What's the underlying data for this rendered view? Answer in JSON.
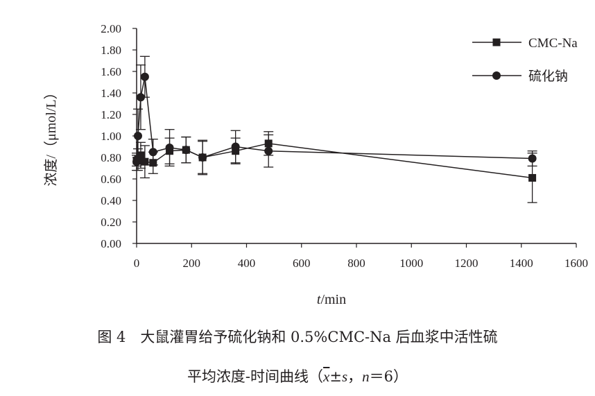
{
  "chart_data": {
    "type": "line",
    "xlabel_italic": "t",
    "xlabel_unit": "/min",
    "ylabel": "浓度/（μmol/L）",
    "xlim": [
      0,
      1600
    ],
    "ylim": [
      0,
      2.0
    ],
    "x_ticks": [
      "0",
      "200",
      "400",
      "600",
      "800",
      "1000",
      "1200",
      "1400",
      "1600"
    ],
    "y_ticks": [
      "0.00",
      "0.20",
      "0.40",
      "0.60",
      "0.80",
      "1.00",
      "1.20",
      "1.40",
      "1.60",
      "1.80",
      "2.00"
    ],
    "legend_position": "top-right",
    "grid": false,
    "series": [
      {
        "name": "CMC-Na",
        "marker": "square",
        "color": "#231f20",
        "x": [
          0,
          5,
          15,
          30,
          60,
          120,
          180,
          240,
          360,
          480,
          1440
        ],
        "y": [
          0.77,
          0.78,
          0.82,
          0.76,
          0.75,
          0.86,
          0.87,
          0.8,
          0.86,
          0.93,
          0.61
        ],
        "err": [
          0.05,
          0.1,
          0.12,
          0.15,
          0.1,
          0.12,
          0.12,
          0.16,
          0.12,
          0.11,
          0.23
        ]
      },
      {
        "name": "硫化钠",
        "marker": "circle",
        "color": "#231f20",
        "x": [
          0,
          5,
          15,
          30,
          60,
          120,
          180,
          240,
          360,
          480,
          1440
        ],
        "y": [
          0.76,
          1.0,
          1.36,
          1.55,
          0.85,
          0.89,
          0.87,
          0.8,
          0.9,
          0.86,
          0.79
        ],
        "err": [
          0.08,
          0.25,
          0.3,
          0.19,
          0.12,
          0.17,
          0.12,
          0.15,
          0.15,
          0.15,
          0.07
        ]
      }
    ]
  },
  "caption": {
    "line1": "图 4　大鼠灌胃给予硫化钠和 0.5%CMC-Na 后血浆中活性硫",
    "line2_prefix": "平均浓度-时间曲线（",
    "line2_xbar": "x",
    "line2_pm": "±",
    "line2_s": "s",
    "line2_sep": "，",
    "line2_n": "n",
    "line2_suffix": "＝6）"
  }
}
